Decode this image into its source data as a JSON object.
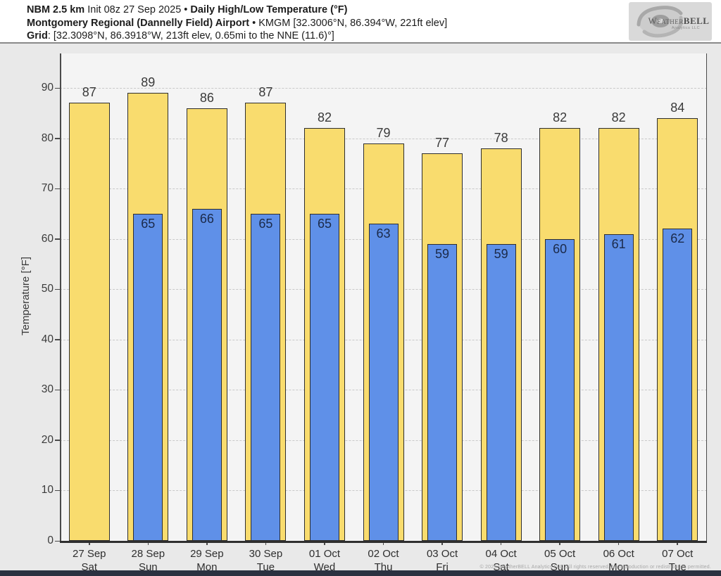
{
  "header": {
    "model": "NBM 2.5 km ",
    "init": "Init 08z 27 Sep 2025 • ",
    "product": "Daily High/Low Temperature (°F)",
    "station_name": "Montgomery Regional (Dannelly Field) Airport ",
    "station_meta": "• KMGM [32.3006°N, 86.394°W, 221ft elev]",
    "grid_label": "Grid",
    "grid_meta": ": [32.3098°N, 86.3918°W, 213ft elev, 0.65mi to the NNE (11.6)°]"
  },
  "logo": {
    "brand_lead": "W",
    "brand_mid": "eather",
    "brand_tail": "BELL",
    "brand_sub": "Analytics LLC"
  },
  "footer": {
    "copyright": "© 2025 WeatherBELL Analytics LLC. All rights reserved. No reproduction or redistribution permitted."
  },
  "colors": {
    "page_bg": "#e9e9e9",
    "header_bg": "#ffffff",
    "plot_bg": "#f4f4f4",
    "high_fill": "#f9dc6e",
    "low_fill": "#5f90e8",
    "bar_border": "#2e2e2e",
    "grid_line": "#c9c9c9",
    "axis_line": "#4a4a4a",
    "high_label": "#3a3a3a",
    "low_label": "#1b2a4a",
    "footer_bar": "#2b3140"
  },
  "chart_data": {
    "type": "bar",
    "title": "Daily High/Low Temperature (°F)",
    "ylabel": "Temperature [°F]",
    "xlabel": "",
    "ylim": [
      0,
      96
    ],
    "yticks": [
      0,
      10,
      20,
      30,
      40,
      50,
      60,
      70,
      80,
      90
    ],
    "grid": "dashed-horizontal",
    "legend": "none",
    "categories": [
      "27 Sep",
      "28 Sep",
      "29 Sep",
      "30 Sep",
      "01 Oct",
      "02 Oct",
      "03 Oct",
      "04 Oct",
      "05 Oct",
      "06 Oct",
      "07 Oct"
    ],
    "weekdays": [
      "Sat",
      "Sun",
      "Mon",
      "Tue",
      "Wed",
      "Thu",
      "Fri",
      "Sat",
      "Sun",
      "Mon",
      "Tue"
    ],
    "series": [
      {
        "name": "High",
        "color_key": "high_fill",
        "values": [
          87,
          89,
          86,
          87,
          82,
          79,
          77,
          78,
          82,
          82,
          84
        ]
      },
      {
        "name": "Low",
        "color_key": "low_fill",
        "values": [
          null,
          65,
          66,
          65,
          65,
          63,
          59,
          59,
          60,
          61,
          62
        ]
      }
    ]
  }
}
